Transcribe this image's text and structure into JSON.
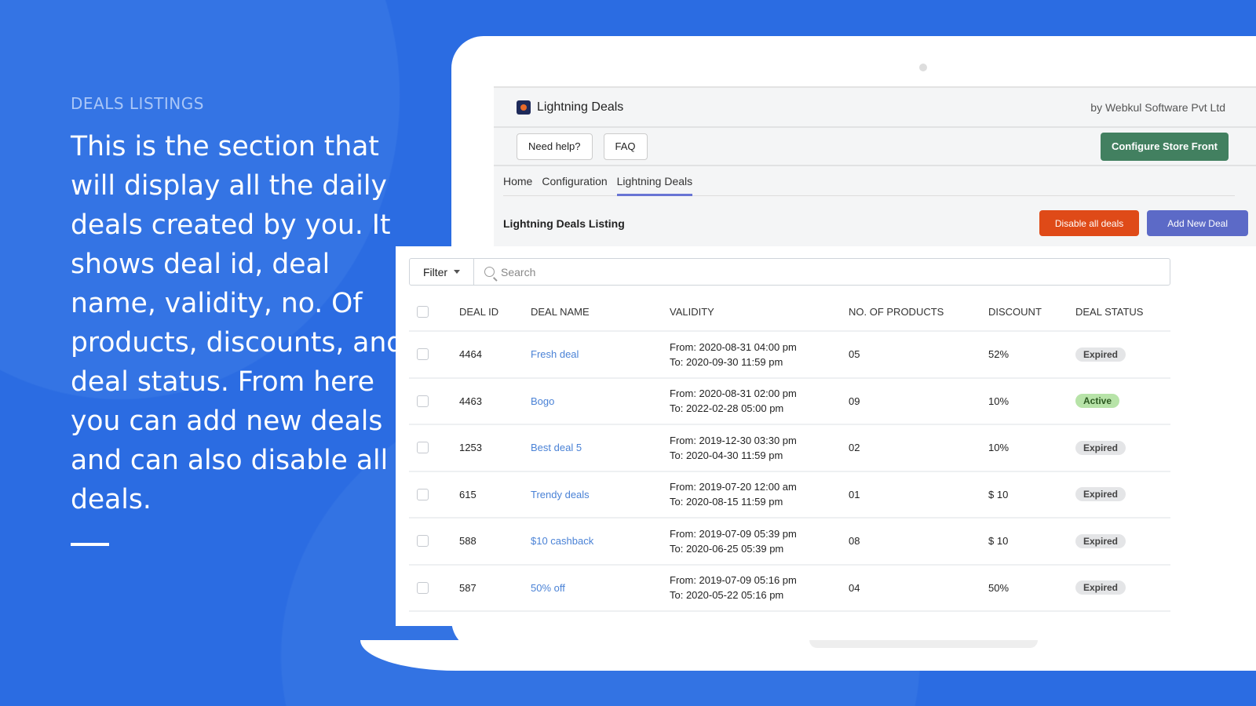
{
  "left": {
    "kicker": "DEALS LISTINGS",
    "description": "This is the section that will display all the daily deals created by you. It shows deal id, deal name, validity, no. Of products, discounts, and deal status. From here you can add new deals and can also disable all deals."
  },
  "app": {
    "title": "Lightning Deals",
    "vendor": "by Webkul Software Pvt Ltd",
    "need_help": "Need help?",
    "faq": "FAQ",
    "configure": "Configure Store Front",
    "tabs": [
      "Home",
      "Configuration",
      "Lightning Deals"
    ],
    "active_tab": "Lightning Deals",
    "listing_title": "Lightning Deals Listing",
    "disable_all": "Disable all deals",
    "add_new": "Add New Deal"
  },
  "colors": {
    "background": "#2b6ce2",
    "configure": "#428060",
    "disable": "#df4a18",
    "add": "#5c6ac7",
    "link": "#4a82d6"
  },
  "table": {
    "filter_label": "Filter",
    "search_placeholder": "Search",
    "headers": [
      "DEAL ID",
      "DEAL NAME",
      "VALIDITY",
      "NO. OF PRODUCTS",
      "DISCOUNT",
      "DEAL STATUS"
    ],
    "rows": [
      {
        "id": "4464",
        "name": "Fresh deal",
        "from": "From: 2020-08-31 04:00 pm",
        "to": "To: 2020-09-30 11:59 pm",
        "products": "05",
        "discount": "52%",
        "status": "Expired"
      },
      {
        "id": "4463",
        "name": "Bogo",
        "from": "From: 2020-08-31 02:00 pm",
        "to": "To: 2022-02-28 05:00 pm",
        "products": "09",
        "discount": "10%",
        "status": "Active"
      },
      {
        "id": "1253",
        "name": "Best deal 5",
        "from": "From: 2019-12-30 03:30 pm",
        "to": "To: 2020-04-30 11:59 pm",
        "products": "02",
        "discount": "10%",
        "status": "Expired"
      },
      {
        "id": "615",
        "name": "Trendy deals",
        "from": "From: 2019-07-20 12:00 am",
        "to": "To: 2020-08-15 11:59 pm",
        "products": "01",
        "discount": "$ 10",
        "status": "Expired"
      },
      {
        "id": "588",
        "name": "$10 cashback",
        "from": "From: 2019-07-09 05:39 pm",
        "to": "To: 2020-06-25 05:39 pm",
        "products": "08",
        "discount": "$ 10",
        "status": "Expired"
      },
      {
        "id": "587",
        "name": "50% off",
        "from": "From: 2019-07-09 05:16 pm",
        "to": "To: 2020-05-22 05:16 pm",
        "products": "04",
        "discount": "50%",
        "status": "Expired"
      }
    ]
  }
}
